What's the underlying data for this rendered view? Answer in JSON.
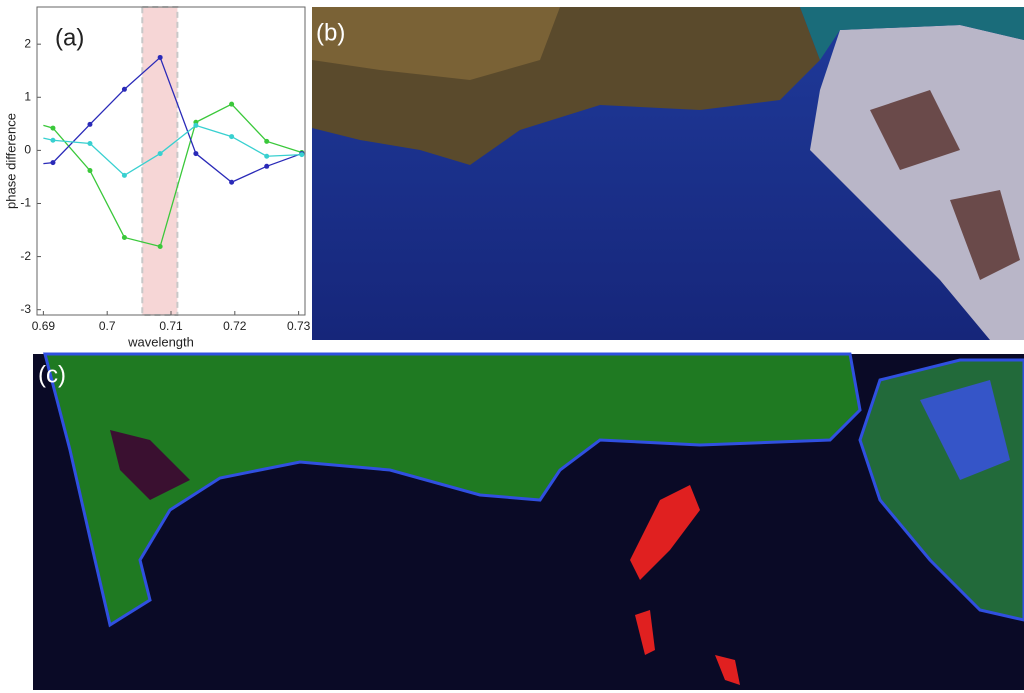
{
  "chart_data": {
    "type": "line",
    "panel_label": "(a)",
    "x_label": "wavelength",
    "y_label": "phase difference",
    "x": [
      0.69,
      0.6915,
      0.6973,
      0.7027,
      0.7083,
      0.7139,
      0.7195,
      0.725,
      0.7305
    ],
    "series": [
      {
        "color": "#3ac83a",
        "values": [
          0.47,
          0.42,
          -0.38,
          -1.64,
          -1.81,
          0.53,
          0.87,
          0.17,
          -0.04
        ]
      },
      {
        "color": "#2a2ab8",
        "values": [
          -0.25,
          -0.23,
          0.49,
          1.15,
          1.75,
          -0.06,
          -0.6,
          -0.3,
          -0.06
        ]
      },
      {
        "color": "#38d0d0",
        "values": [
          0.23,
          0.19,
          0.13,
          -0.47,
          -0.06,
          0.47,
          0.26,
          -0.11,
          -0.08
        ]
      }
    ],
    "highlight_range": [
      0.7055,
      0.711
    ],
    "highlight_color": "#f6d6d6",
    "xlim": [
      0.689,
      0.731
    ],
    "xticks": [
      0.69,
      0.7,
      0.71,
      0.72,
      0.73
    ],
    "ylim": [
      -3.1,
      2.7
    ],
    "yticks": [
      -3,
      -2,
      -1,
      0,
      1,
      2
    ]
  },
  "panels": {
    "b": "(b)",
    "c": "(c)"
  }
}
